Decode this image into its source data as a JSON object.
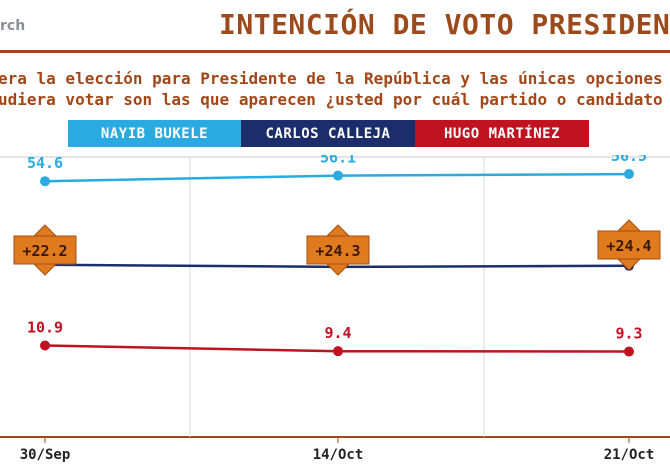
{
  "brand": "rch",
  "title": "INTENCIÓN DE VOTO PRESIDENC",
  "question": {
    "line1": "era la elección para Presidente de la República y las únicas opciones po",
    "line2": "udiera votar son las que aparecen ¿usted por cuál partido o candidato v"
  },
  "colors": {
    "bukele": "#29abe2",
    "calleja": "#1b2d6b",
    "martinez": "#c1121f",
    "accent": "#9c4a1c",
    "badge": "#e07a1f"
  },
  "chart_data": {
    "type": "line",
    "categories": [
      "30/Sep",
      "14/Oct",
      "21/Oct"
    ],
    "series": [
      {
        "name": "NAYIB BUKELE",
        "values": [
          54.6,
          56.1,
          56.5
        ],
        "labels": [
          "54.6",
          "56.1",
          "56.5"
        ],
        "color": "#29abe2"
      },
      {
        "name": "CARLOS CALLEJA",
        "values": [
          32.4,
          31.8,
          32.1
        ],
        "labels": [
          "32.4",
          "31.8",
          "32.1"
        ],
        "color": "#1b2d6b"
      },
      {
        "name": "HUGO MARTÍNEZ",
        "values": [
          10.9,
          9.4,
          9.3
        ],
        "labels": [
          "10.9",
          "9.4",
          "9.3"
        ],
        "color": "#c1121f"
      }
    ],
    "gaps": [
      "+22.2",
      "+24.3",
      "+24.4"
    ],
    "legend_position": "top",
    "grid": "vertical"
  }
}
